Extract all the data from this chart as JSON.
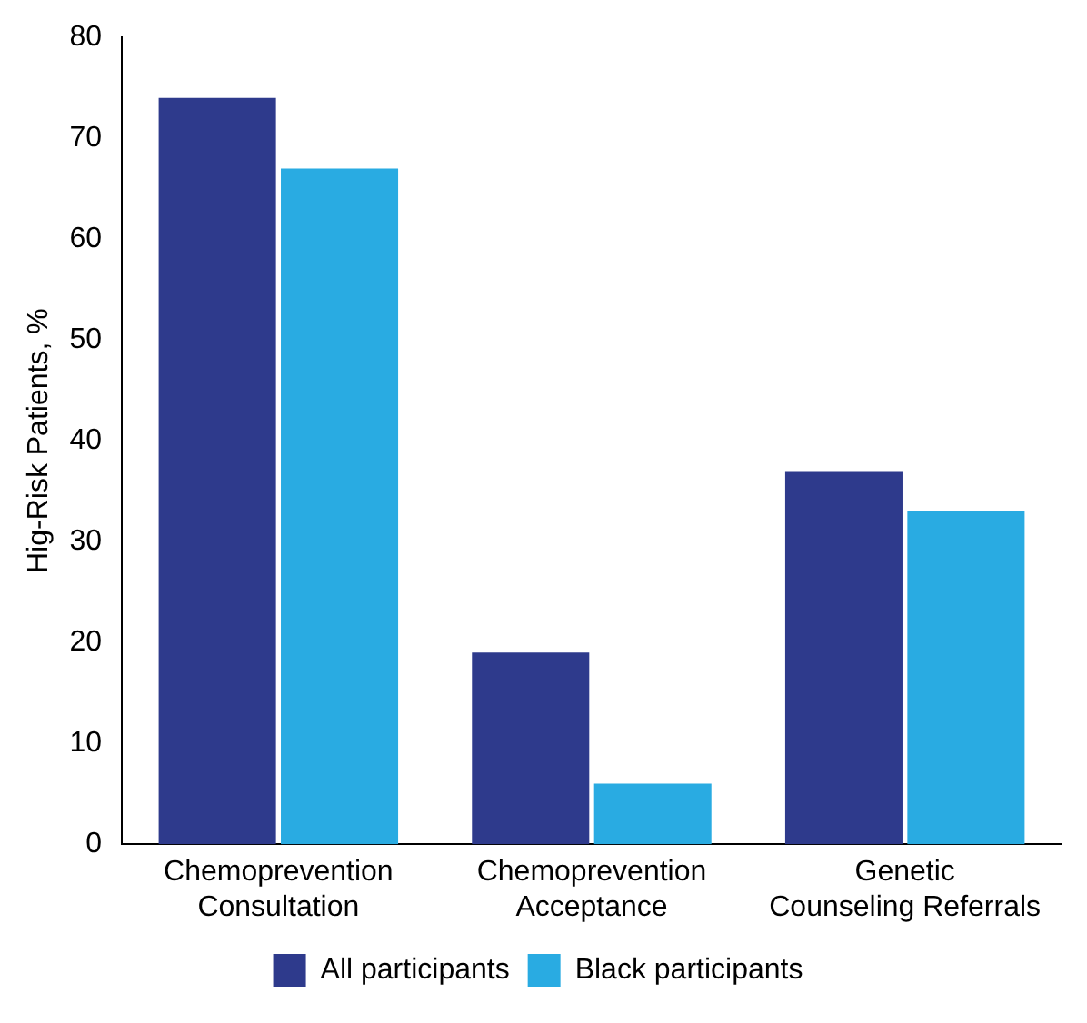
{
  "chart_data": {
    "type": "bar",
    "ylabel": "Hig-Risk Patients, %",
    "categories": [
      "Chemoprevention Consultation",
      "Chemoprevention Acceptance",
      "Genetic Counseling Referrals"
    ],
    "series": [
      {
        "name": "All participants",
        "color": "#2e3a8c",
        "values": [
          74,
          19,
          37
        ]
      },
      {
        "name": "Black participants",
        "color": "#29abe2",
        "values": [
          67,
          6,
          33
        ]
      }
    ],
    "ylim": [
      0,
      80
    ],
    "yticks": [
      0,
      10,
      20,
      30,
      40,
      50,
      60,
      70,
      80
    ],
    "grid": false,
    "legend": "bottom"
  }
}
